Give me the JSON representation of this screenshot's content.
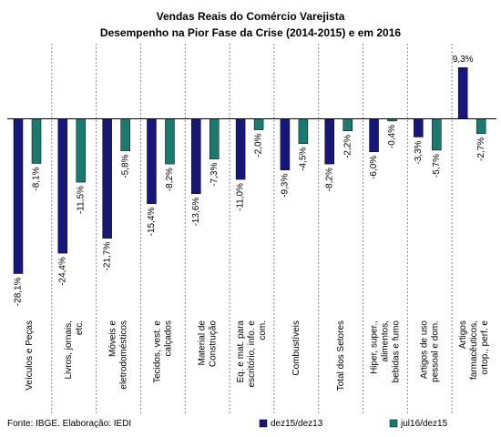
{
  "chart_data": {
    "type": "bar",
    "title": "Vendas Reais do Comércio Varejista",
    "subtitle": "Desempenho na Pior Fase da Crise (2014-2015) e em 2016",
    "source": "Fonte: IBGE. Elaboração: IEDI",
    "categories": [
      [
        "Veículos e Peças"
      ],
      [
        "Livros, jornais,",
        "etc."
      ],
      [
        "Móveis e",
        "eletrodomésticos"
      ],
      [
        "Tecidos, vest. e",
        "calçados"
      ],
      [
        "Material de",
        "Construção"
      ],
      [
        "Eq. e mat. para",
        "escritório, info. e",
        "com."
      ],
      [
        "Combustíveis"
      ],
      [
        "Total dos Setores"
      ],
      [
        "Hiper, super.,",
        "alimentos,",
        "bebidas e fumo"
      ],
      [
        "Artigos de uso",
        "pessoal e dom."
      ],
      [
        "Artigos",
        "farmacêuticos,",
        "ortop., perf. e"
      ]
    ],
    "series": [
      {
        "name": "dez15/dez13",
        "color": "#17177a",
        "values": [
          -28.1,
          -24.4,
          -21.7,
          -15.4,
          -13.6,
          -11.0,
          -9.3,
          -8.2,
          -6.0,
          -3.3,
          9.3
        ],
        "value_labels": [
          "-28,1%",
          "-24,4%",
          "-21,7%",
          "-15,4%",
          "-13,6%",
          "-11,0%",
          "-9,3%",
          "-8,2%",
          "-6,0%",
          "-3,3%",
          "9,3%"
        ]
      },
      {
        "name": "jul16/dez15",
        "color": "#1b7a70",
        "values": [
          -8.1,
          -11.5,
          -5.8,
          -8.2,
          -7.3,
          -2.0,
          -4.5,
          -2.2,
          -0.4,
          -5.7,
          -2.7
        ],
        "value_labels": [
          "-8,1%",
          "-11,5%",
          "-5,8%",
          "-8,2%",
          "-7,3%",
          "-2,0%",
          "-4,5%",
          "-2,2%",
          "-0,4%",
          "-5,7%",
          "-2,7%"
        ]
      }
    ],
    "ylim": [
      -30,
      10
    ]
  }
}
